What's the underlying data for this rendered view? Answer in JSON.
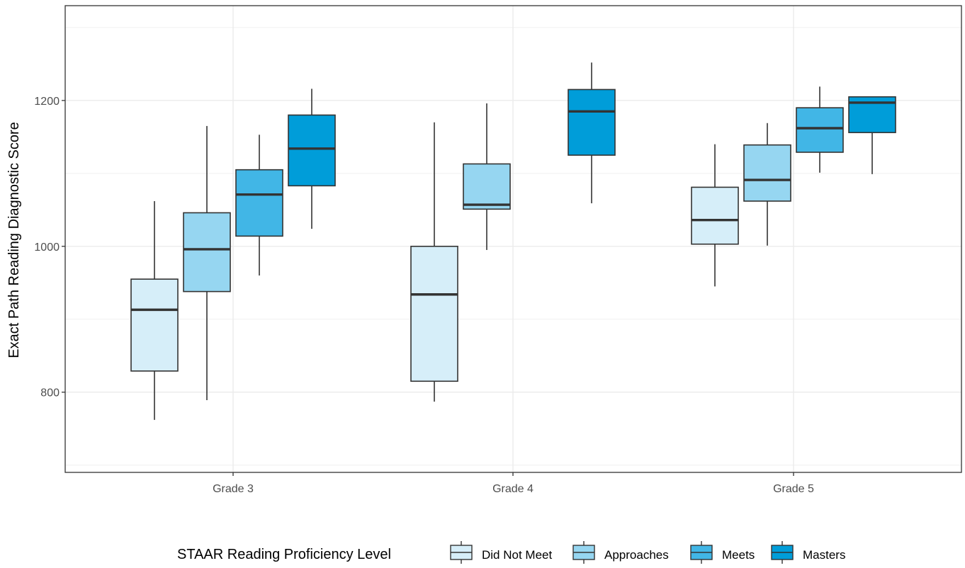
{
  "chart_data": {
    "type": "boxplot",
    "title": "",
    "xlabel": "",
    "ylabel": "Exact Path Reading Diagnostic Score",
    "ylim": [
      690,
      1330
    ],
    "yticks": [
      800,
      1000,
      1200
    ],
    "grid": true,
    "legend_position": "bottom",
    "legend_title": "STAAR Reading Proficiency Level",
    "categories": [
      "Grade 3",
      "Grade 4",
      "Grade 5"
    ],
    "series": [
      {
        "name": "Did Not Meet",
        "color": "#d6eef9",
        "boxes": [
          {
            "category": "Grade 3",
            "min": 762,
            "q1": 829,
            "median": 913,
            "q3": 955,
            "max": 1062
          },
          {
            "category": "Grade 4",
            "min": 787,
            "q1": 815,
            "median": 934,
            "q3": 1000,
            "max": 1170
          },
          {
            "category": "Grade 5",
            "min": 945,
            "q1": 1003,
            "median": 1036,
            "q3": 1081,
            "max": 1140
          }
        ]
      },
      {
        "name": "Approaches",
        "color": "#96d6f1",
        "boxes": [
          {
            "category": "Grade 3",
            "min": 789,
            "q1": 938,
            "median": 996,
            "q3": 1046,
            "max": 1165
          },
          {
            "category": "Grade 4",
            "min": 995,
            "q1": 1051,
            "median": 1057,
            "q3": 1113,
            "max": 1196
          },
          {
            "category": "Grade 5",
            "min": 1001,
            "q1": 1062,
            "median": 1091,
            "q3": 1139,
            "max": 1169
          }
        ]
      },
      {
        "name": "Meets",
        "color": "#41b6e6",
        "boxes": [
          {
            "category": "Grade 3",
            "min": 960,
            "q1": 1014,
            "median": 1071,
            "q3": 1105,
            "max": 1153
          },
          {
            "category": "Grade 5",
            "min": 1101,
            "q1": 1129,
            "median": 1162,
            "q3": 1190,
            "max": 1219
          }
        ]
      },
      {
        "name": "Masters",
        "color": "#009dd9",
        "boxes": [
          {
            "category": "Grade 3",
            "min": 1024,
            "q1": 1083,
            "median": 1134,
            "q3": 1180,
            "max": 1216
          },
          {
            "category": "Grade 4",
            "min": 1059,
            "q1": 1125,
            "median": 1185,
            "q3": 1215,
            "max": 1252
          },
          {
            "category": "Grade 5",
            "min": 1099,
            "q1": 1156,
            "median": 1197,
            "q3": 1205,
            "max": 1205
          }
        ]
      }
    ]
  }
}
